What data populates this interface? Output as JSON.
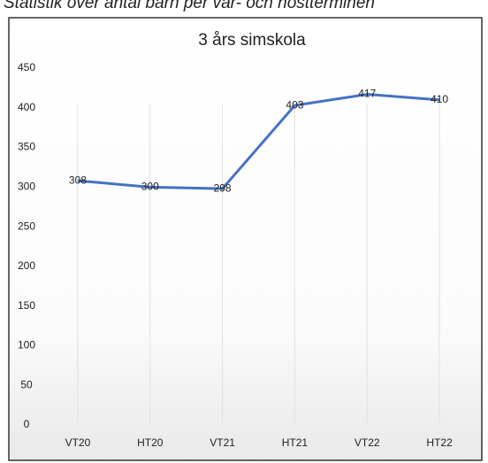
{
  "caption": "Statistik över antal barn per vår- och höstterminen",
  "chart_data": {
    "type": "line",
    "title": "3 års simskola",
    "categories": [
      "VT20",
      "HT20",
      "VT21",
      "HT21",
      "VT22",
      "HT22"
    ],
    "values": [
      308,
      300,
      298,
      403,
      417,
      410
    ],
    "color": "#4472c4",
    "ylim": [
      0,
      450
    ],
    "yticks": [
      0,
      50,
      100,
      150,
      200,
      250,
      300,
      350,
      400,
      450
    ],
    "grid": "x"
  }
}
